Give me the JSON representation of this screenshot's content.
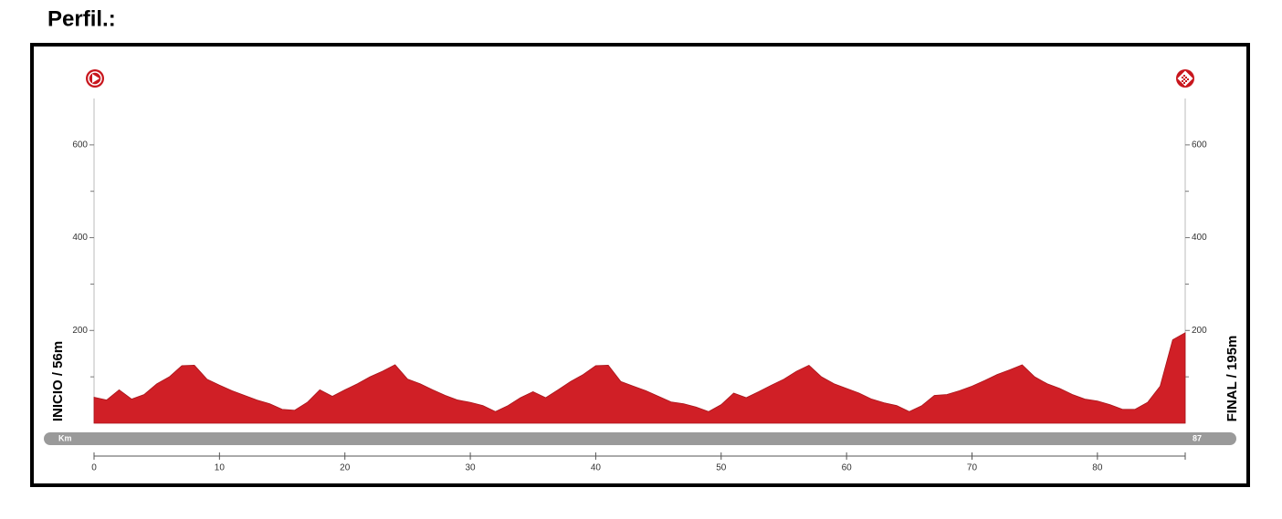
{
  "chart_data": {
    "type": "area",
    "title": "Perfil.:",
    "start_label": "INICIO / 56m",
    "end_label": "FINAL / 195m",
    "x_label": "Km",
    "x": [
      0,
      1,
      2,
      3,
      4,
      5,
      6,
      7,
      8,
      9,
      10,
      11,
      12,
      13,
      14,
      15,
      16,
      17,
      18,
      19,
      20,
      21,
      22,
      23,
      24,
      25,
      26,
      27,
      28,
      29,
      30,
      31,
      32,
      33,
      34,
      35,
      36,
      37,
      38,
      39,
      40,
      41,
      42,
      43,
      44,
      45,
      46,
      47,
      48,
      49,
      50,
      51,
      52,
      53,
      54,
      55,
      56,
      57,
      58,
      59,
      60,
      61,
      62,
      63,
      64,
      65,
      66,
      67,
      68,
      69,
      70,
      71,
      72,
      73,
      74,
      75,
      76,
      77,
      78,
      79,
      80,
      81,
      82,
      83,
      84,
      85,
      86,
      87
    ],
    "values": [
      56,
      50,
      72,
      52,
      62,
      85,
      100,
      124,
      125,
      95,
      82,
      70,
      60,
      50,
      42,
      30,
      28,
      45,
      72,
      58,
      72,
      85,
      100,
      112,
      126,
      95,
      85,
      72,
      60,
      50,
      45,
      38,
      25,
      38,
      55,
      68,
      55,
      72,
      90,
      105,
      124,
      125,
      90,
      80,
      70,
      58,
      46,
      42,
      35,
      25,
      40,
      65,
      55,
      68,
      82,
      95,
      112,
      125,
      100,
      85,
      75,
      65,
      52,
      44,
      38,
      25,
      38,
      60,
      62,
      70,
      80,
      92,
      105,
      115,
      126,
      100,
      85,
      75,
      62,
      52,
      48,
      40,
      30,
      30,
      45,
      80,
      180,
      195
    ],
    "color": "#d01f26",
    "xlim": [
      0,
      87
    ],
    "xticks": [
      0,
      10,
      20,
      30,
      40,
      50,
      60,
      70,
      80
    ],
    "ylim": [
      0,
      700
    ],
    "yticks": [
      200,
      400,
      600
    ],
    "yminor": [
      100,
      300,
      500
    ]
  }
}
